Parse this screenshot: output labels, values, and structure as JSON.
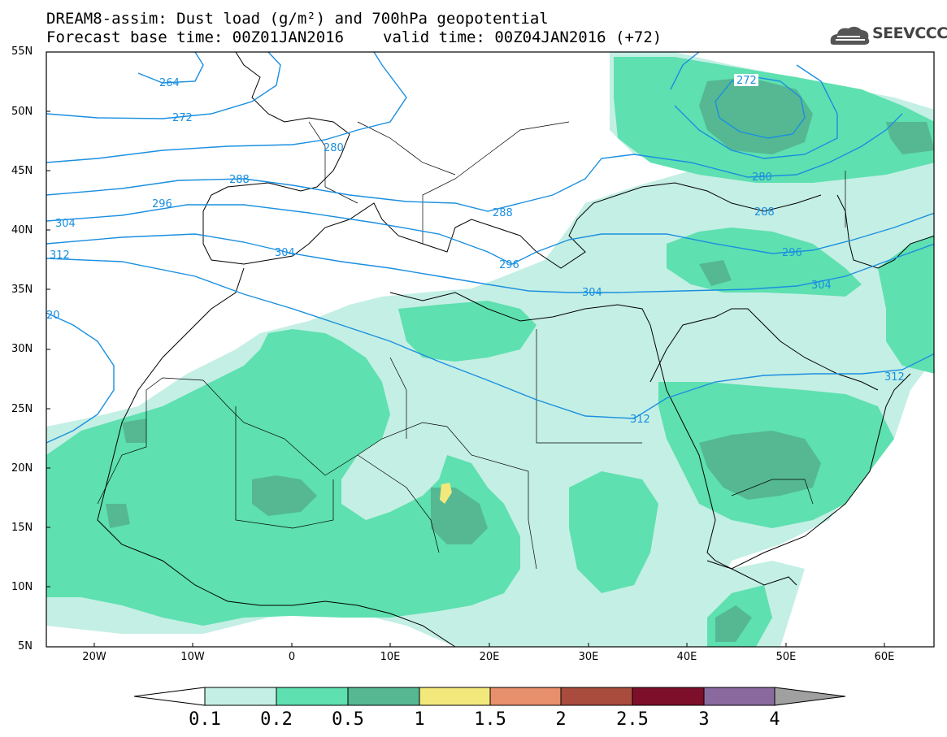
{
  "title": {
    "line1": "DREAM8-assim: Dust load (g/m²) and 700hPa geopotential",
    "line2_base": "Forecast base time: 00Z01JAN2016",
    "line2_valid": "valid time: 00Z04JAN2016 (+72)"
  },
  "logo": {
    "icon": "cloud-icon",
    "text": "SEEVCCC"
  },
  "axes": {
    "lat_labels": [
      "55N",
      "50N",
      "45N",
      "40N",
      "35N",
      "30N",
      "25N",
      "20N",
      "15N",
      "10N",
      "5N"
    ],
    "lon_labels": [
      "20W",
      "10W",
      "0",
      "10E",
      "20E",
      "30E",
      "40E",
      "50E",
      "60E"
    ]
  },
  "contours": {
    "color": "#1a8fe0",
    "labels": [
      "264",
      "272",
      "280",
      "288",
      "296",
      "304",
      "312",
      "20",
      "304",
      "288",
      "296",
      "304",
      "312",
      "272",
      "280",
      "288",
      "296",
      "304",
      "312"
    ]
  },
  "legend": {
    "labels": [
      "0.1",
      "0.2",
      "0.5",
      "1",
      "1.5",
      "2",
      "2.5",
      "3",
      "4"
    ],
    "colors": [
      "#c4efe4",
      "#5ee0b0",
      "#55b893",
      "#f3e87c",
      "#e88f6b",
      "#a94b3d",
      "#7d0f2a",
      "#8a6a9e",
      "#a0a0a0"
    ]
  },
  "colors": {
    "light_dust": "#c4efe4",
    "medium_dust": "#5ee0b0",
    "dark_dust": "#55b893",
    "yellow_dust": "#f3e87c"
  }
}
